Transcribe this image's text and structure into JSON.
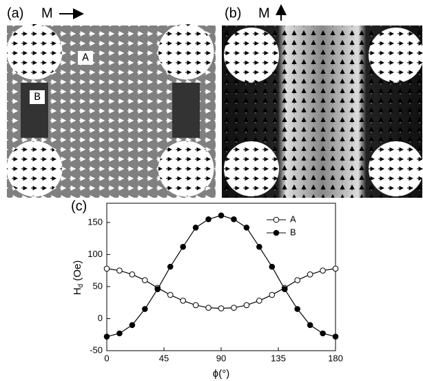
{
  "panels": {
    "a": {
      "label": "(a)",
      "field": "M",
      "regions": [
        "A",
        "B"
      ]
    },
    "b": {
      "label": "(b)",
      "field": "M"
    },
    "c": {
      "label": "(c)"
    }
  },
  "chart_data": {
    "type": "line",
    "ylabel": [
      "H",
      "d",
      " (Oe)"
    ],
    "xlabel": "ϕ(°)",
    "x": [
      0,
      10,
      20,
      30,
      40,
      50,
      60,
      70,
      80,
      90,
      100,
      110,
      120,
      130,
      140,
      150,
      160,
      170,
      180
    ],
    "series": [
      {
        "name": "A",
        "color": "#000000",
        "marker": "open",
        "values": [
          78,
          75,
          69,
          60,
          48,
          37,
          28,
          21,
          17,
          16,
          17,
          21,
          28,
          37,
          48,
          60,
          69,
          75,
          78
        ]
      },
      {
        "name": "B",
        "color": "#000000",
        "marker": "filled",
        "values": [
          -28,
          -23,
          -10,
          15,
          46,
          81,
          112,
          142,
          155,
          161,
          155,
          142,
          112,
          81,
          46,
          15,
          -10,
          -23,
          -28
        ]
      }
    ],
    "xlim": [
      0,
      180
    ],
    "xticks": [
      0,
      45,
      90,
      135,
      180
    ],
    "ylim": [
      -50,
      180
    ],
    "yticks": [
      -50,
      0,
      50,
      100,
      150
    ],
    "legend": "upper-right"
  }
}
